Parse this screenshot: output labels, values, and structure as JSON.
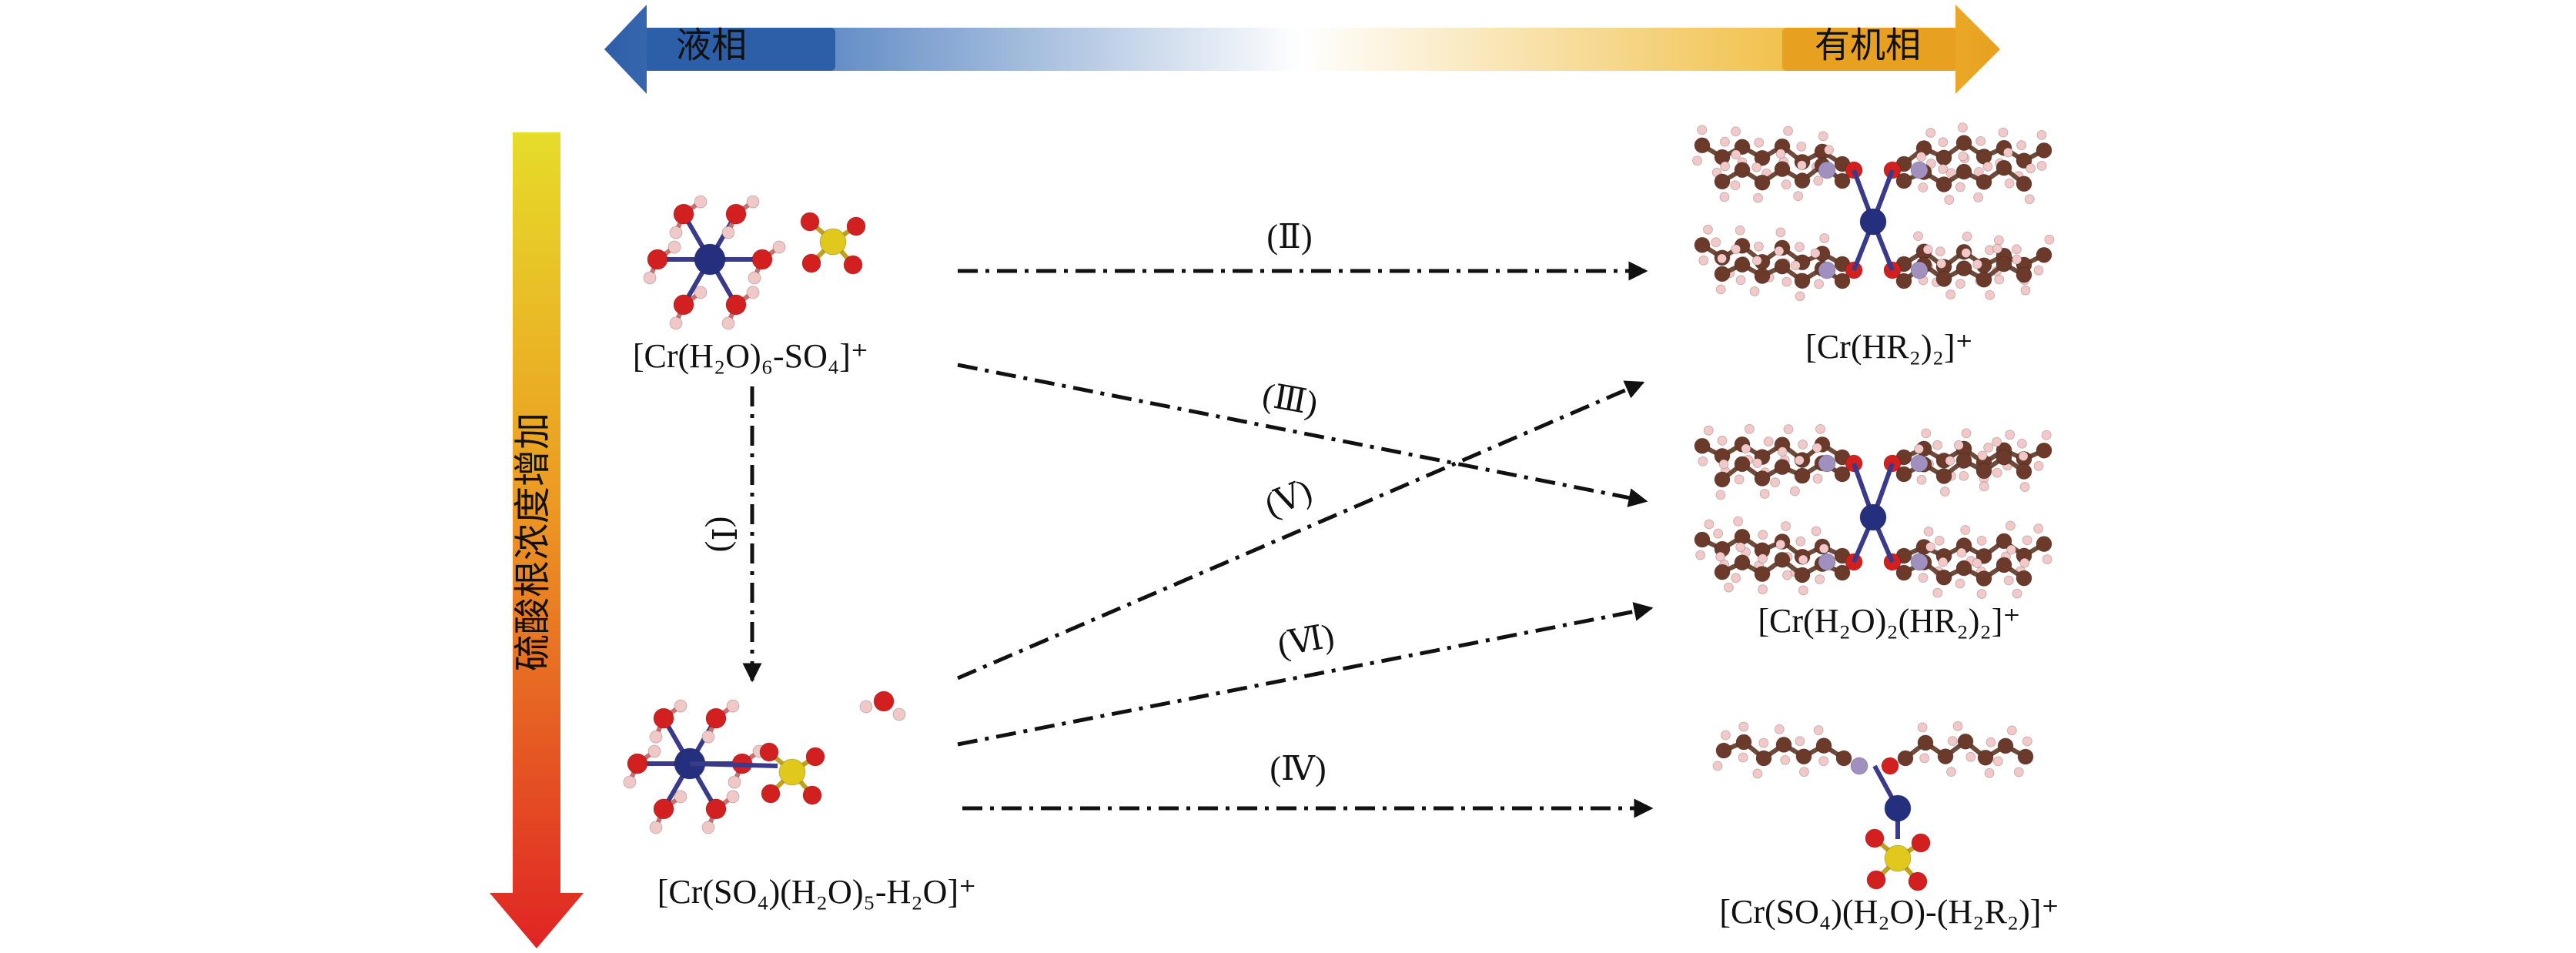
{
  "phase_axis": {
    "left": "液相",
    "right": "有机相"
  },
  "concentration_axis": "硫酸根浓度增加",
  "species": {
    "aqueous_1": "[Cr(H₂O)₆-SO₄]⁺",
    "aqueous_2": "[Cr(SO₄)(H₂O)₅-H₂O]⁺",
    "organic_1": "[Cr(HR₂)₂]⁺",
    "organic_2": "[Cr(H₂O)₂(HR₂)₂]⁺",
    "organic_3": "[Cr(SO₄)(H₂O)-(H₂R₂)]⁺"
  },
  "paths": {
    "I": "(Ⅰ)",
    "II": "(Ⅱ)",
    "III": "(Ⅲ)",
    "IV": "(Ⅳ)",
    "V": "(Ⅴ)",
    "VI": "(Ⅵ)"
  }
}
